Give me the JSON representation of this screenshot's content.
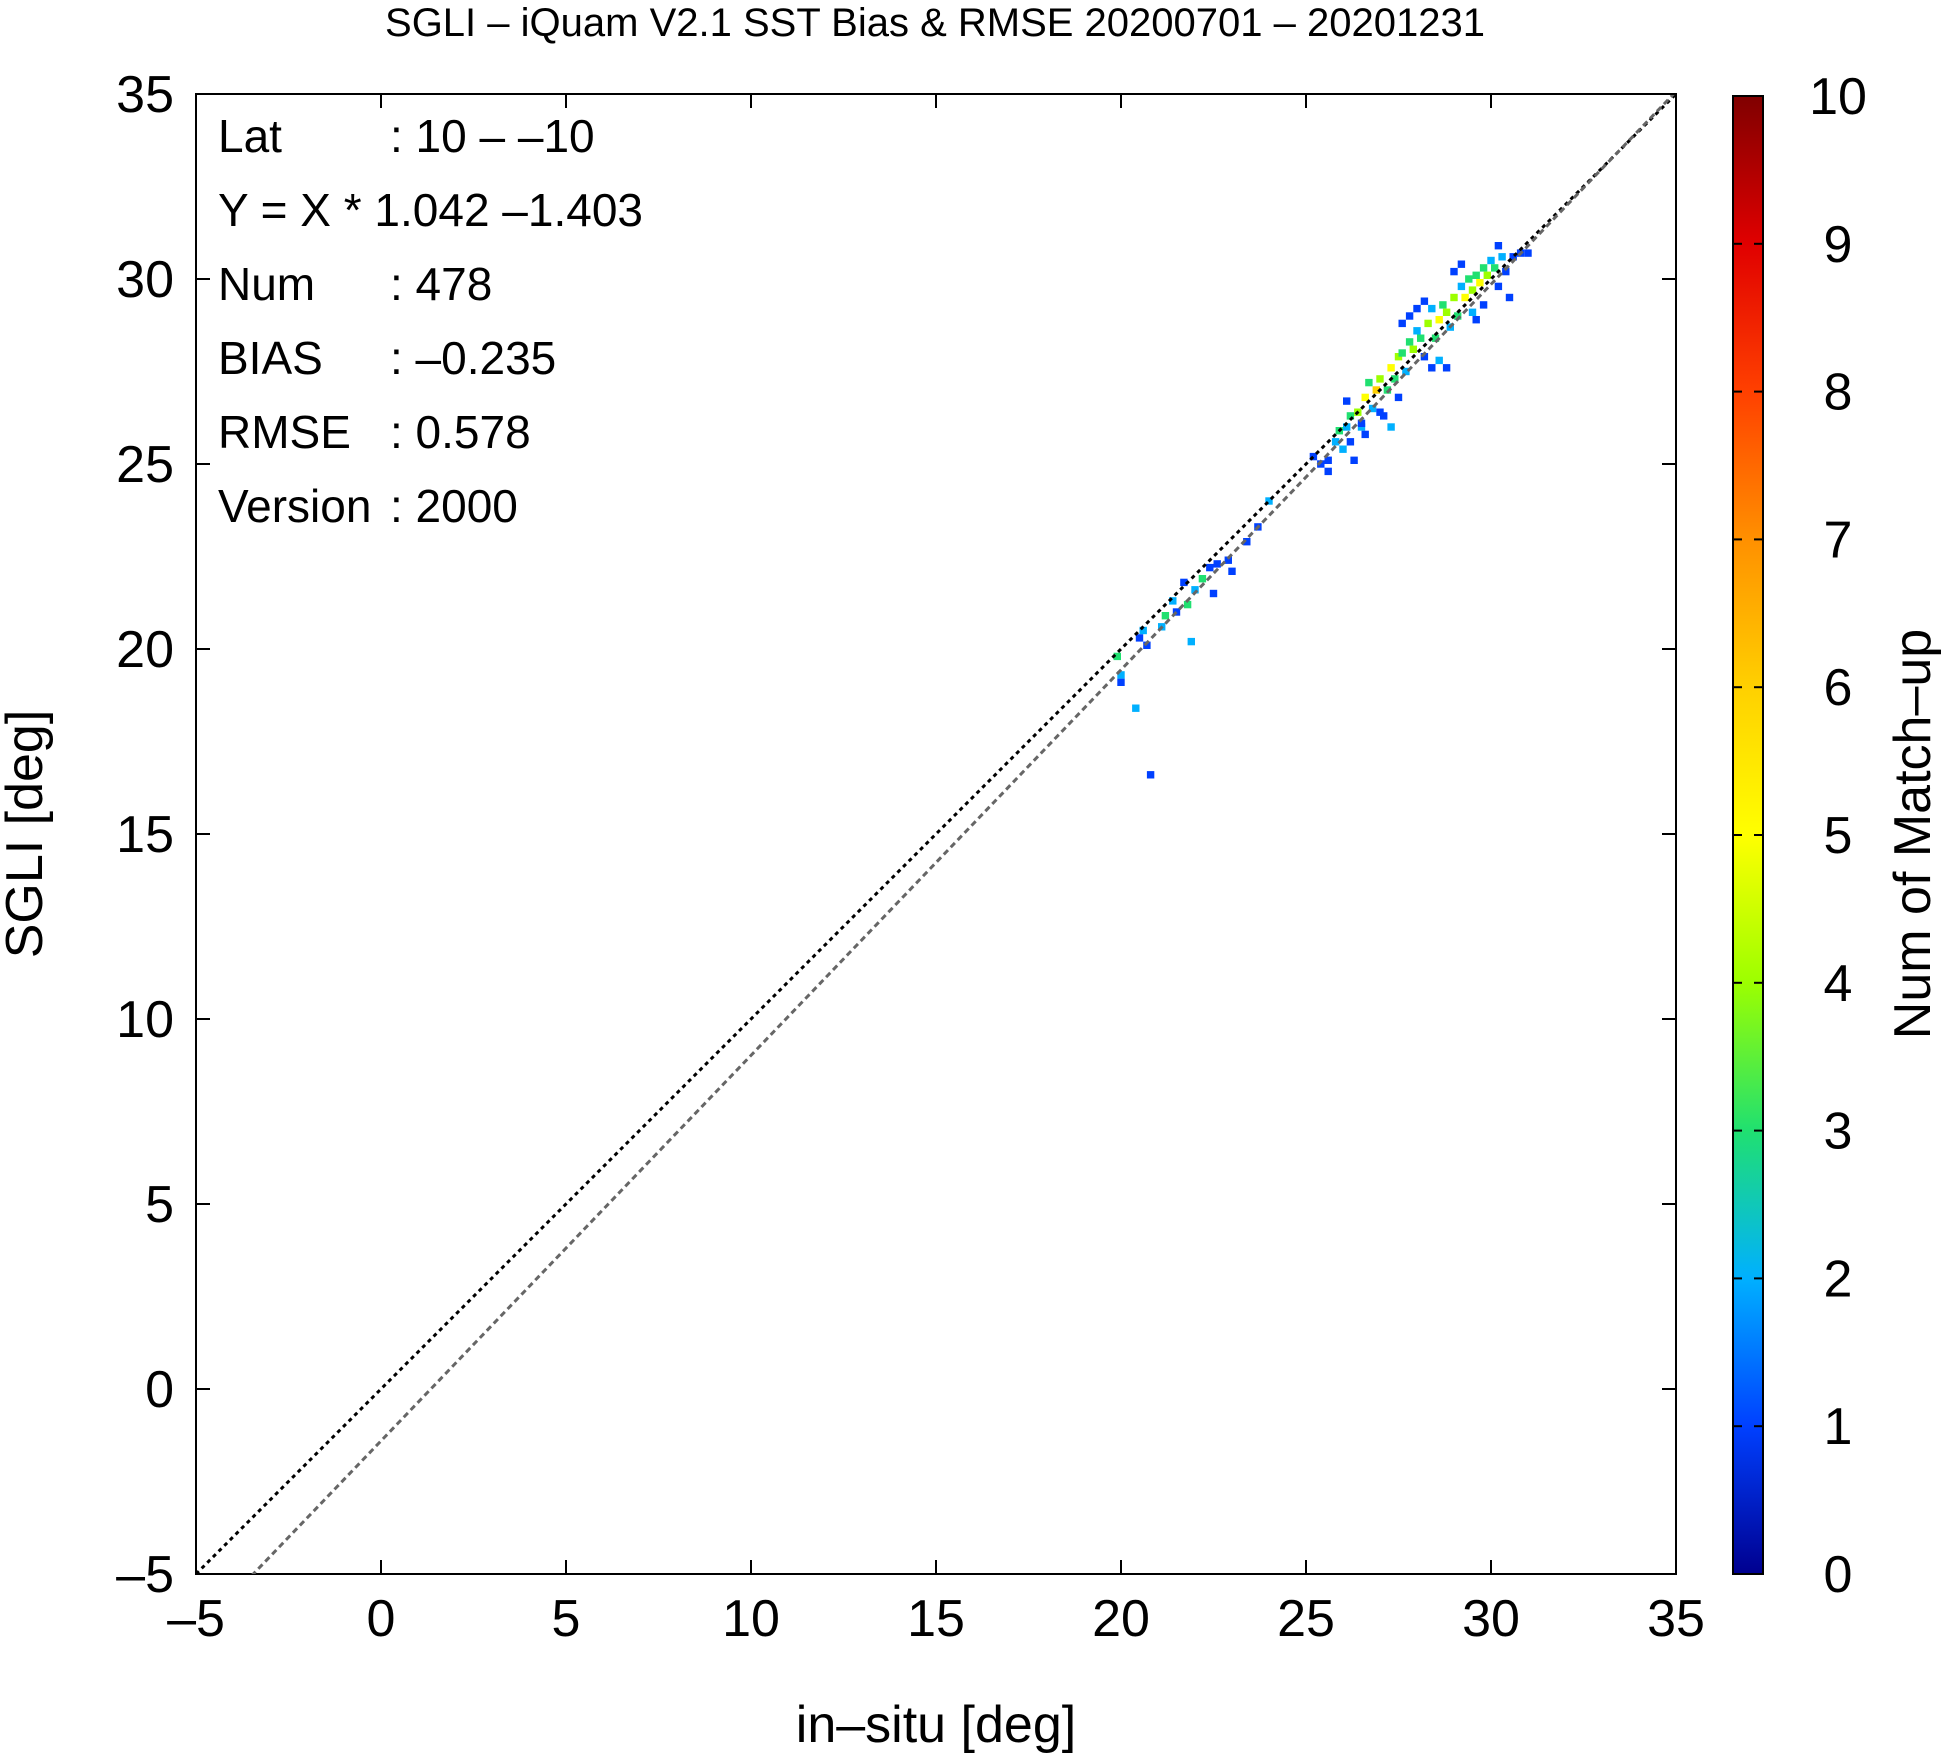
{
  "chart_data": {
    "type": "heatmap",
    "title": "SGLI – iQuam V2.1 SST Bias & RMSE 20200701 – 20201231",
    "xlabel": "in–situ [deg]",
    "ylabel": "SGLI [deg]",
    "xlim": [
      -5,
      35
    ],
    "ylim": [
      -5,
      35
    ],
    "xticks": [
      "–5",
      "0",
      "5",
      "10",
      "15",
      "20",
      "25",
      "30",
      "35"
    ],
    "yticks": [
      "–5",
      "0",
      "5",
      "10",
      "15",
      "20",
      "25",
      "30",
      "35"
    ],
    "grid": false,
    "bin_size": 0.2,
    "stats": [
      {
        "label": "Lat",
        "value": ": 10 – –10"
      },
      {
        "label": "Y = X * 1.042 –1.403",
        "value": ""
      },
      {
        "label": "Num",
        "value": ": 478"
      },
      {
        "label": "BIAS",
        "value": ": –0.235"
      },
      {
        "label": "RMSE",
        "value": ": 0.578"
      },
      {
        "label": "Version",
        "value": ": 2000"
      }
    ],
    "reference_lines": [
      {
        "slope": 1.0,
        "intercept": 0.0,
        "color": "#000000",
        "style": "dotted"
      },
      {
        "slope": 1.042,
        "intercept": -1.403,
        "color": "#666666",
        "style": "dashed"
      }
    ],
    "colorbar": {
      "label": "Num of Match–up",
      "range": [
        0,
        10
      ],
      "ticks": [
        "0",
        "1",
        "2",
        "3",
        "4",
        "5",
        "6",
        "7",
        "8",
        "9",
        "10"
      ],
      "colors": [
        "#00008f",
        "#0040ff",
        "#00b0ff",
        "#20e070",
        "#9cff00",
        "#ffff00",
        "#ffd000",
        "#ff9000",
        "#ff4000",
        "#e00000",
        "#800000"
      ]
    },
    "points": [
      [
        20.8,
        16.6,
        1
      ],
      [
        20.4,
        18.4,
        2
      ],
      [
        20.0,
        19.1,
        1
      ],
      [
        20.0,
        19.3,
        2
      ],
      [
        19.9,
        19.8,
        3
      ],
      [
        20.5,
        20.3,
        1
      ],
      [
        20.7,
        20.1,
        1
      ],
      [
        20.6,
        20.5,
        2
      ],
      [
        21.2,
        20.9,
        3
      ],
      [
        21.1,
        20.6,
        2
      ],
      [
        21.4,
        21.3,
        2
      ],
      [
        21.5,
        21.0,
        1
      ],
      [
        21.7,
        21.8,
        1
      ],
      [
        21.9,
        20.2,
        2
      ],
      [
        21.8,
        21.2,
        3
      ],
      [
        22.0,
        21.6,
        2
      ],
      [
        22.2,
        21.9,
        3
      ],
      [
        22.4,
        22.2,
        1
      ],
      [
        22.6,
        22.3,
        1
      ],
      [
        22.9,
        22.4,
        1
      ],
      [
        23.0,
        22.1,
        1
      ],
      [
        22.5,
        21.5,
        1
      ],
      [
        23.4,
        22.9,
        1
      ],
      [
        23.7,
        23.3,
        1
      ],
      [
        24.0,
        24.0,
        2
      ],
      [
        25.2,
        25.2,
        1
      ],
      [
        25.4,
        25.0,
        1
      ],
      [
        25.6,
        24.8,
        1
      ],
      [
        25.8,
        25.6,
        2
      ],
      [
        25.9,
        25.9,
        3
      ],
      [
        26.1,
        26.0,
        2
      ],
      [
        26.3,
        25.1,
        1
      ],
      [
        26.0,
        25.4,
        2
      ],
      [
        26.2,
        26.3,
        3
      ],
      [
        26.1,
        26.7,
        1
      ],
      [
        26.4,
        26.4,
        4
      ],
      [
        26.5,
        26.0,
        2
      ],
      [
        26.6,
        26.8,
        5
      ],
      [
        26.7,
        27.2,
        3
      ],
      [
        26.8,
        26.5,
        2
      ],
      [
        26.9,
        27.0,
        6
      ],
      [
        27.0,
        27.3,
        4
      ],
      [
        27.1,
        26.3,
        1
      ],
      [
        27.2,
        27.0,
        3
      ],
      [
        27.3,
        27.6,
        5
      ],
      [
        27.4,
        27.3,
        3
      ],
      [
        27.5,
        26.8,
        1
      ],
      [
        27.5,
        27.9,
        4
      ],
      [
        27.6,
        28.0,
        3
      ],
      [
        27.7,
        27.5,
        2
      ],
      [
        27.8,
        28.3,
        3
      ],
      [
        27.9,
        28.1,
        4
      ],
      [
        27.3,
        26.0,
        2
      ],
      [
        26.5,
        26.1,
        1
      ],
      [
        28.0,
        28.6,
        2
      ],
      [
        28.1,
        28.4,
        3
      ],
      [
        28.2,
        27.9,
        1
      ],
      [
        28.3,
        28.8,
        4
      ],
      [
        28.4,
        29.2,
        2
      ],
      [
        28.5,
        28.4,
        3
      ],
      [
        28.6,
        28.9,
        5
      ],
      [
        28.6,
        27.8,
        2
      ],
      [
        28.7,
        29.3,
        3
      ],
      [
        28.8,
        29.1,
        4
      ],
      [
        28.9,
        28.7,
        2
      ],
      [
        29.0,
        29.5,
        4
      ],
      [
        29.1,
        29.0,
        3
      ],
      [
        29.2,
        29.8,
        2
      ],
      [
        29.3,
        29.5,
        5
      ],
      [
        29.4,
        30.0,
        3
      ],
      [
        29.5,
        29.7,
        4
      ],
      [
        29.5,
        29.1,
        2
      ],
      [
        29.6,
        30.1,
        3
      ],
      [
        29.7,
        29.9,
        5
      ],
      [
        29.8,
        30.3,
        3
      ],
      [
        29.9,
        30.1,
        4
      ],
      [
        30.0,
        30.5,
        2
      ],
      [
        30.1,
        30.3,
        3
      ],
      [
        30.2,
        29.8,
        1
      ],
      [
        30.3,
        30.6,
        2
      ],
      [
        30.4,
        30.2,
        1
      ],
      [
        30.6,
        30.6,
        1
      ],
      [
        30.8,
        30.7,
        1
      ],
      [
        31.0,
        30.7,
        1
      ],
      [
        30.5,
        29.5,
        1
      ],
      [
        29.8,
        29.3,
        1
      ],
      [
        29.2,
        30.4,
        1
      ],
      [
        29.0,
        30.2,
        1
      ],
      [
        28.0,
        29.2,
        1
      ],
      [
        27.8,
        29.0,
        1
      ],
      [
        28.4,
        27.6,
        1
      ],
      [
        28.8,
        27.6,
        1
      ],
      [
        27.6,
        28.8,
        1
      ],
      [
        28.2,
        29.4,
        1
      ],
      [
        27.0,
        26.4,
        1
      ],
      [
        26.6,
        25.8,
        1
      ],
      [
        26.2,
        25.6,
        1
      ],
      [
        25.6,
        25.1,
        1
      ],
      [
        29.6,
        28.9,
        1
      ],
      [
        30.2,
        30.9,
        1
      ]
    ]
  }
}
